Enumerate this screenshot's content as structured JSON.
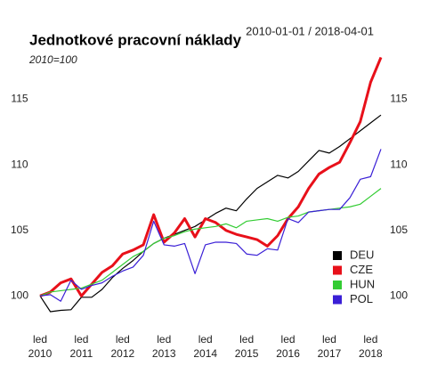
{
  "chart_data": {
    "type": "line",
    "title": "Jednotkové pracovní náklady",
    "subtitle": "2010=100",
    "date_range": "2010-01-01 / 2018-04-01",
    "x": [
      2010,
      2010.25,
      2010.5,
      2010.75,
      2011,
      2011.25,
      2011.5,
      2011.75,
      2012,
      2012.25,
      2012.5,
      2012.75,
      2013,
      2013.25,
      2013.5,
      2013.75,
      2014,
      2014.25,
      2014.5,
      2014.75,
      2015,
      2015.25,
      2015.5,
      2015.75,
      2016,
      2016.25,
      2016.5,
      2016.75,
      2017,
      2017.25,
      2017.5,
      2017.75,
      2018,
      2018.25
    ],
    "xlim": [
      2010,
      2018.25
    ],
    "xticks": [
      {
        "value": 2010,
        "label": "led 2010"
      },
      {
        "value": 2011,
        "label": "led 2011"
      },
      {
        "value": 2012,
        "label": "led 2012"
      },
      {
        "value": 2013,
        "label": "led 2013"
      },
      {
        "value": 2014,
        "label": "led 2014"
      },
      {
        "value": 2015,
        "label": "led 2015"
      },
      {
        "value": 2016,
        "label": "led 2016"
      },
      {
        "value": 2017,
        "label": "led 2017"
      },
      {
        "value": 2018,
        "label": "led 2018"
      }
    ],
    "ylim": [
      98.8,
      118.5
    ],
    "yticks": [
      100,
      105,
      110,
      115
    ],
    "grid": false,
    "legend": "bottom-right",
    "series": [
      {
        "name": "DEU",
        "color": "#000000",
        "width": 1.2,
        "values": [
          100,
          98.8,
          98.9,
          98.95,
          99.9,
          99.9,
          100.5,
          101.4,
          102.1,
          102.7,
          103.4,
          104,
          104.4,
          104.7,
          105,
          105.3,
          105.8,
          106.3,
          106.7,
          106.5,
          107.4,
          108.2,
          108.7,
          109.2,
          109,
          109.5,
          110.3,
          111.1,
          110.9,
          111.4,
          112,
          112.6,
          113.2,
          113.8
        ]
      },
      {
        "name": "CZE",
        "color": "#e8101a",
        "width": 3,
        "values": [
          100,
          100.3,
          101,
          101.3,
          100,
          100.9,
          101.8,
          102.3,
          103.2,
          103.5,
          103.9,
          106.2,
          104.1,
          104.8,
          105.9,
          104.5,
          105.9,
          105.6,
          105,
          104.7,
          104.5,
          104.3,
          103.8,
          104.6,
          105.9,
          106.8,
          108.2,
          109.3,
          109.8,
          110.2,
          111.7,
          113.3,
          116.3,
          118.2
        ]
      },
      {
        "name": "HUN",
        "color": "#33cc33",
        "width": 1.2,
        "values": [
          100,
          100.3,
          100.4,
          100.5,
          100.6,
          100.9,
          101.2,
          101.8,
          102.4,
          103,
          103.4,
          104,
          104.4,
          104.6,
          104.9,
          105.1,
          105.2,
          105.3,
          105.5,
          105.2,
          105.7,
          105.8,
          105.9,
          105.7,
          106,
          106.1,
          106.4,
          106.5,
          106.6,
          106.7,
          106.8,
          107,
          107.6,
          108.2
        ]
      },
      {
        "name": "POL",
        "color": "#3a1fd6",
        "width": 1.2,
        "values": [
          100,
          100.1,
          99.6,
          101.2,
          100.5,
          100.8,
          101,
          101.5,
          101.9,
          102.2,
          103.1,
          105.7,
          103.9,
          103.8,
          104,
          101.7,
          103.9,
          104.1,
          104.1,
          104,
          103.2,
          103.1,
          103.6,
          103.5,
          105.9,
          105.6,
          106.4,
          106.5,
          106.6,
          106.6,
          107.5,
          108.9,
          109.1,
          111.2
        ]
      }
    ]
  }
}
